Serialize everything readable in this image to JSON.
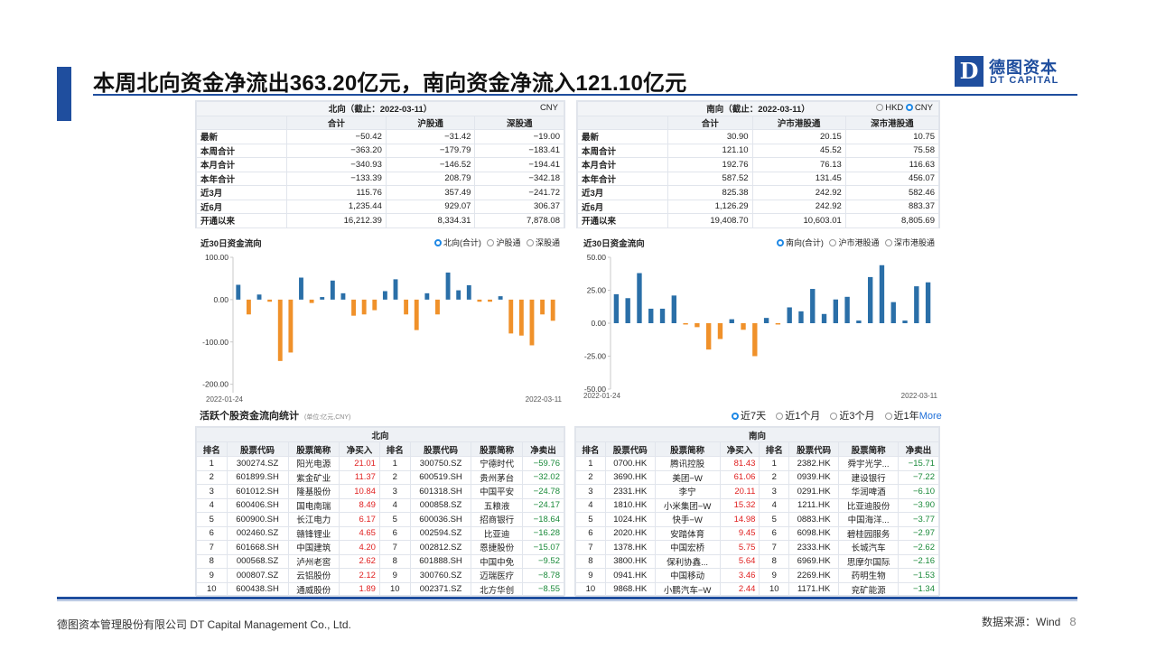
{
  "header": {
    "title": "本周北向资金净流出363.20亿元，南向资金净流入121.10亿元",
    "logo_cn": "德图资本",
    "logo_en": "DT CAPITAL",
    "logo_mark": "D"
  },
  "north_summary": {
    "caption": "北向（截止：2022-03-11）",
    "currency": "CNY",
    "columns": [
      "合计",
      "沪股通",
      "深股通"
    ],
    "rows": [
      {
        "label": "最新",
        "values": [
          "−50.42",
          "−31.42",
          "−19.00"
        ]
      },
      {
        "label": "本周合计",
        "values": [
          "−363.20",
          "−179.79",
          "−183.41"
        ]
      },
      {
        "label": "本月合计",
        "values": [
          "−340.93",
          "−146.52",
          "−194.41"
        ]
      },
      {
        "label": "本年合计",
        "values": [
          "−133.39",
          "208.79",
          "−342.18"
        ]
      },
      {
        "label": "近3月",
        "values": [
          "115.76",
          "357.49",
          "−241.72"
        ]
      },
      {
        "label": "近6月",
        "values": [
          "1,235.44",
          "929.07",
          "306.37"
        ]
      },
      {
        "label": "开通以来",
        "values": [
          "16,212.39",
          "8,334.31",
          "7,878.08"
        ]
      }
    ]
  },
  "south_summary": {
    "caption": "南向（截止：2022-03-11）",
    "currency_options": [
      "HKD",
      "CNY"
    ],
    "columns": [
      "合计",
      "沪市港股通",
      "深市港股通"
    ],
    "rows": [
      {
        "label": "最新",
        "values": [
          "30.90",
          "20.15",
          "10.75"
        ]
      },
      {
        "label": "本周合计",
        "values": [
          "121.10",
          "45.52",
          "75.58"
        ]
      },
      {
        "label": "本月合计",
        "values": [
          "192.76",
          "76.13",
          "116.63"
        ]
      },
      {
        "label": "本年合计",
        "values": [
          "587.52",
          "131.45",
          "456.07"
        ]
      },
      {
        "label": "近3月",
        "values": [
          "825.38",
          "242.92",
          "582.46"
        ]
      },
      {
        "label": "近6月",
        "values": [
          "1,126.29",
          "242.92",
          "883.37"
        ]
      },
      {
        "label": "开通以来",
        "values": [
          "19,408.70",
          "10,603.01",
          "8,805.69"
        ]
      }
    ]
  },
  "north_chart": {
    "title": "近30日资金流向",
    "legend": [
      "北向(合计)",
      "沪股通",
      "深股通"
    ],
    "x_start": "2022-01-24",
    "x_end": "2022-03-11",
    "yticks": [
      "100.00",
      "0.00",
      "-100.00",
      "-200.00"
    ],
    "ylim": [
      -220,
      100
    ],
    "values": [
      35,
      -35,
      12,
      -5,
      -145,
      -125,
      52,
      -8,
      6,
      45,
      15,
      -38,
      -35,
      -25,
      20,
      48,
      -35,
      -72,
      15,
      -35,
      64,
      22,
      34,
      -5,
      -5,
      8,
      -80,
      -85,
      -108,
      -35,
      -50
    ],
    "pos_color": "#2a6fa8",
    "neg_color": "#f0912a"
  },
  "south_chart": {
    "title": "近30日资金流向",
    "legend": [
      "南向(合计)",
      "沪市港股通",
      "深市港股通"
    ],
    "x_start": "2022-01-24",
    "x_end": "2022-03-11",
    "yticks": [
      "50.00",
      "25.00",
      "0.00",
      "-25.00",
      "-50.00"
    ],
    "ylim": [
      -50,
      50
    ],
    "values": [
      22,
      19,
      38,
      11,
      11,
      21,
      -1,
      -3,
      -20,
      -12,
      3,
      -5,
      -25,
      4,
      -1,
      12,
      9,
      26,
      7,
      18,
      20,
      2,
      35,
      44,
      16,
      2,
      28,
      31
    ],
    "pos_color": "#2a6fa8",
    "neg_color": "#f0912a"
  },
  "active_section": {
    "title": "活跃个股资金流向统计",
    "unit": "(单位:亿元,CNY)",
    "tabs": [
      "近7天",
      "近1个月",
      "近3个月",
      "近1年"
    ],
    "more": "More"
  },
  "north_stocks": {
    "caption": "北向",
    "headers": [
      "排名",
      "股票代码",
      "股票简称",
      "净买入",
      "排名",
      "股票代码",
      "股票简称",
      "净卖出"
    ],
    "rows": [
      [
        "1",
        "300274.SZ",
        "阳光电源",
        "21.01",
        "1",
        "300750.SZ",
        "宁德时代",
        "−59.76"
      ],
      [
        "2",
        "601899.SH",
        "紫金矿业",
        "11.37",
        "2",
        "600519.SH",
        "贵州茅台",
        "−32.02"
      ],
      [
        "3",
        "601012.SH",
        "隆基股份",
        "10.84",
        "3",
        "601318.SH",
        "中国平安",
        "−24.78"
      ],
      [
        "4",
        "600406.SH",
        "国电南瑞",
        "8.49",
        "4",
        "000858.SZ",
        "五粮液",
        "−24.17"
      ],
      [
        "5",
        "600900.SH",
        "长江电力",
        "6.17",
        "5",
        "600036.SH",
        "招商银行",
        "−18.64"
      ],
      [
        "6",
        "002460.SZ",
        "赣锋锂业",
        "4.65",
        "6",
        "002594.SZ",
        "比亚迪",
        "−16.28"
      ],
      [
        "7",
        "601668.SH",
        "中国建筑",
        "4.20",
        "7",
        "002812.SZ",
        "恩捷股份",
        "−15.07"
      ],
      [
        "8",
        "000568.SZ",
        "泸州老窖",
        "2.62",
        "8",
        "601888.SH",
        "中国中免",
        "−9.52"
      ],
      [
        "9",
        "000807.SZ",
        "云铝股份",
        "2.12",
        "9",
        "300760.SZ",
        "迈瑞医疗",
        "−8.78"
      ],
      [
        "10",
        "600438.SH",
        "通威股份",
        "1.89",
        "10",
        "002371.SZ",
        "北方华创",
        "−8.55"
      ]
    ]
  },
  "south_stocks": {
    "caption": "南向",
    "headers": [
      "排名",
      "股票代码",
      "股票简称",
      "净买入",
      "排名",
      "股票代码",
      "股票简称",
      "净卖出"
    ],
    "rows": [
      [
        "1",
        "0700.HK",
        "腾讯控股",
        "81.43",
        "1",
        "2382.HK",
        "舜宇光学...",
        "−15.71"
      ],
      [
        "2",
        "3690.HK",
        "美团−W",
        "61.06",
        "2",
        "0939.HK",
        "建设银行",
        "−7.22"
      ],
      [
        "3",
        "2331.HK",
        "李宁",
        "20.11",
        "3",
        "0291.HK",
        "华润啤酒",
        "−6.10"
      ],
      [
        "4",
        "1810.HK",
        "小米集团−W",
        "15.32",
        "4",
        "1211.HK",
        "比亚迪股份",
        "−3.90"
      ],
      [
        "5",
        "1024.HK",
        "快手−W",
        "14.98",
        "5",
        "0883.HK",
        "中国海洋...",
        "−3.77"
      ],
      [
        "6",
        "2020.HK",
        "安踏体育",
        "9.45",
        "6",
        "6098.HK",
        "碧桂园服务",
        "−2.97"
      ],
      [
        "7",
        "1378.HK",
        "中国宏桥",
        "5.75",
        "7",
        "2333.HK",
        "长城汽车",
        "−2.62"
      ],
      [
        "8",
        "3800.HK",
        "保利协鑫...",
        "5.64",
        "8",
        "6969.HK",
        "思摩尔国际",
        "−2.16"
      ],
      [
        "9",
        "0941.HK",
        "中国移动",
        "3.46",
        "9",
        "2269.HK",
        "药明生物",
        "−1.53"
      ],
      [
        "10",
        "9868.HK",
        "小鹏汽车−W",
        "2.44",
        "10",
        "1171.HK",
        "兖矿能源",
        "−1.34"
      ]
    ]
  },
  "footer": {
    "company": "德图资本管理股份有限公司  DT Capital Management  Co., Ltd.",
    "source": "数据来源：Wind",
    "page": "8"
  }
}
